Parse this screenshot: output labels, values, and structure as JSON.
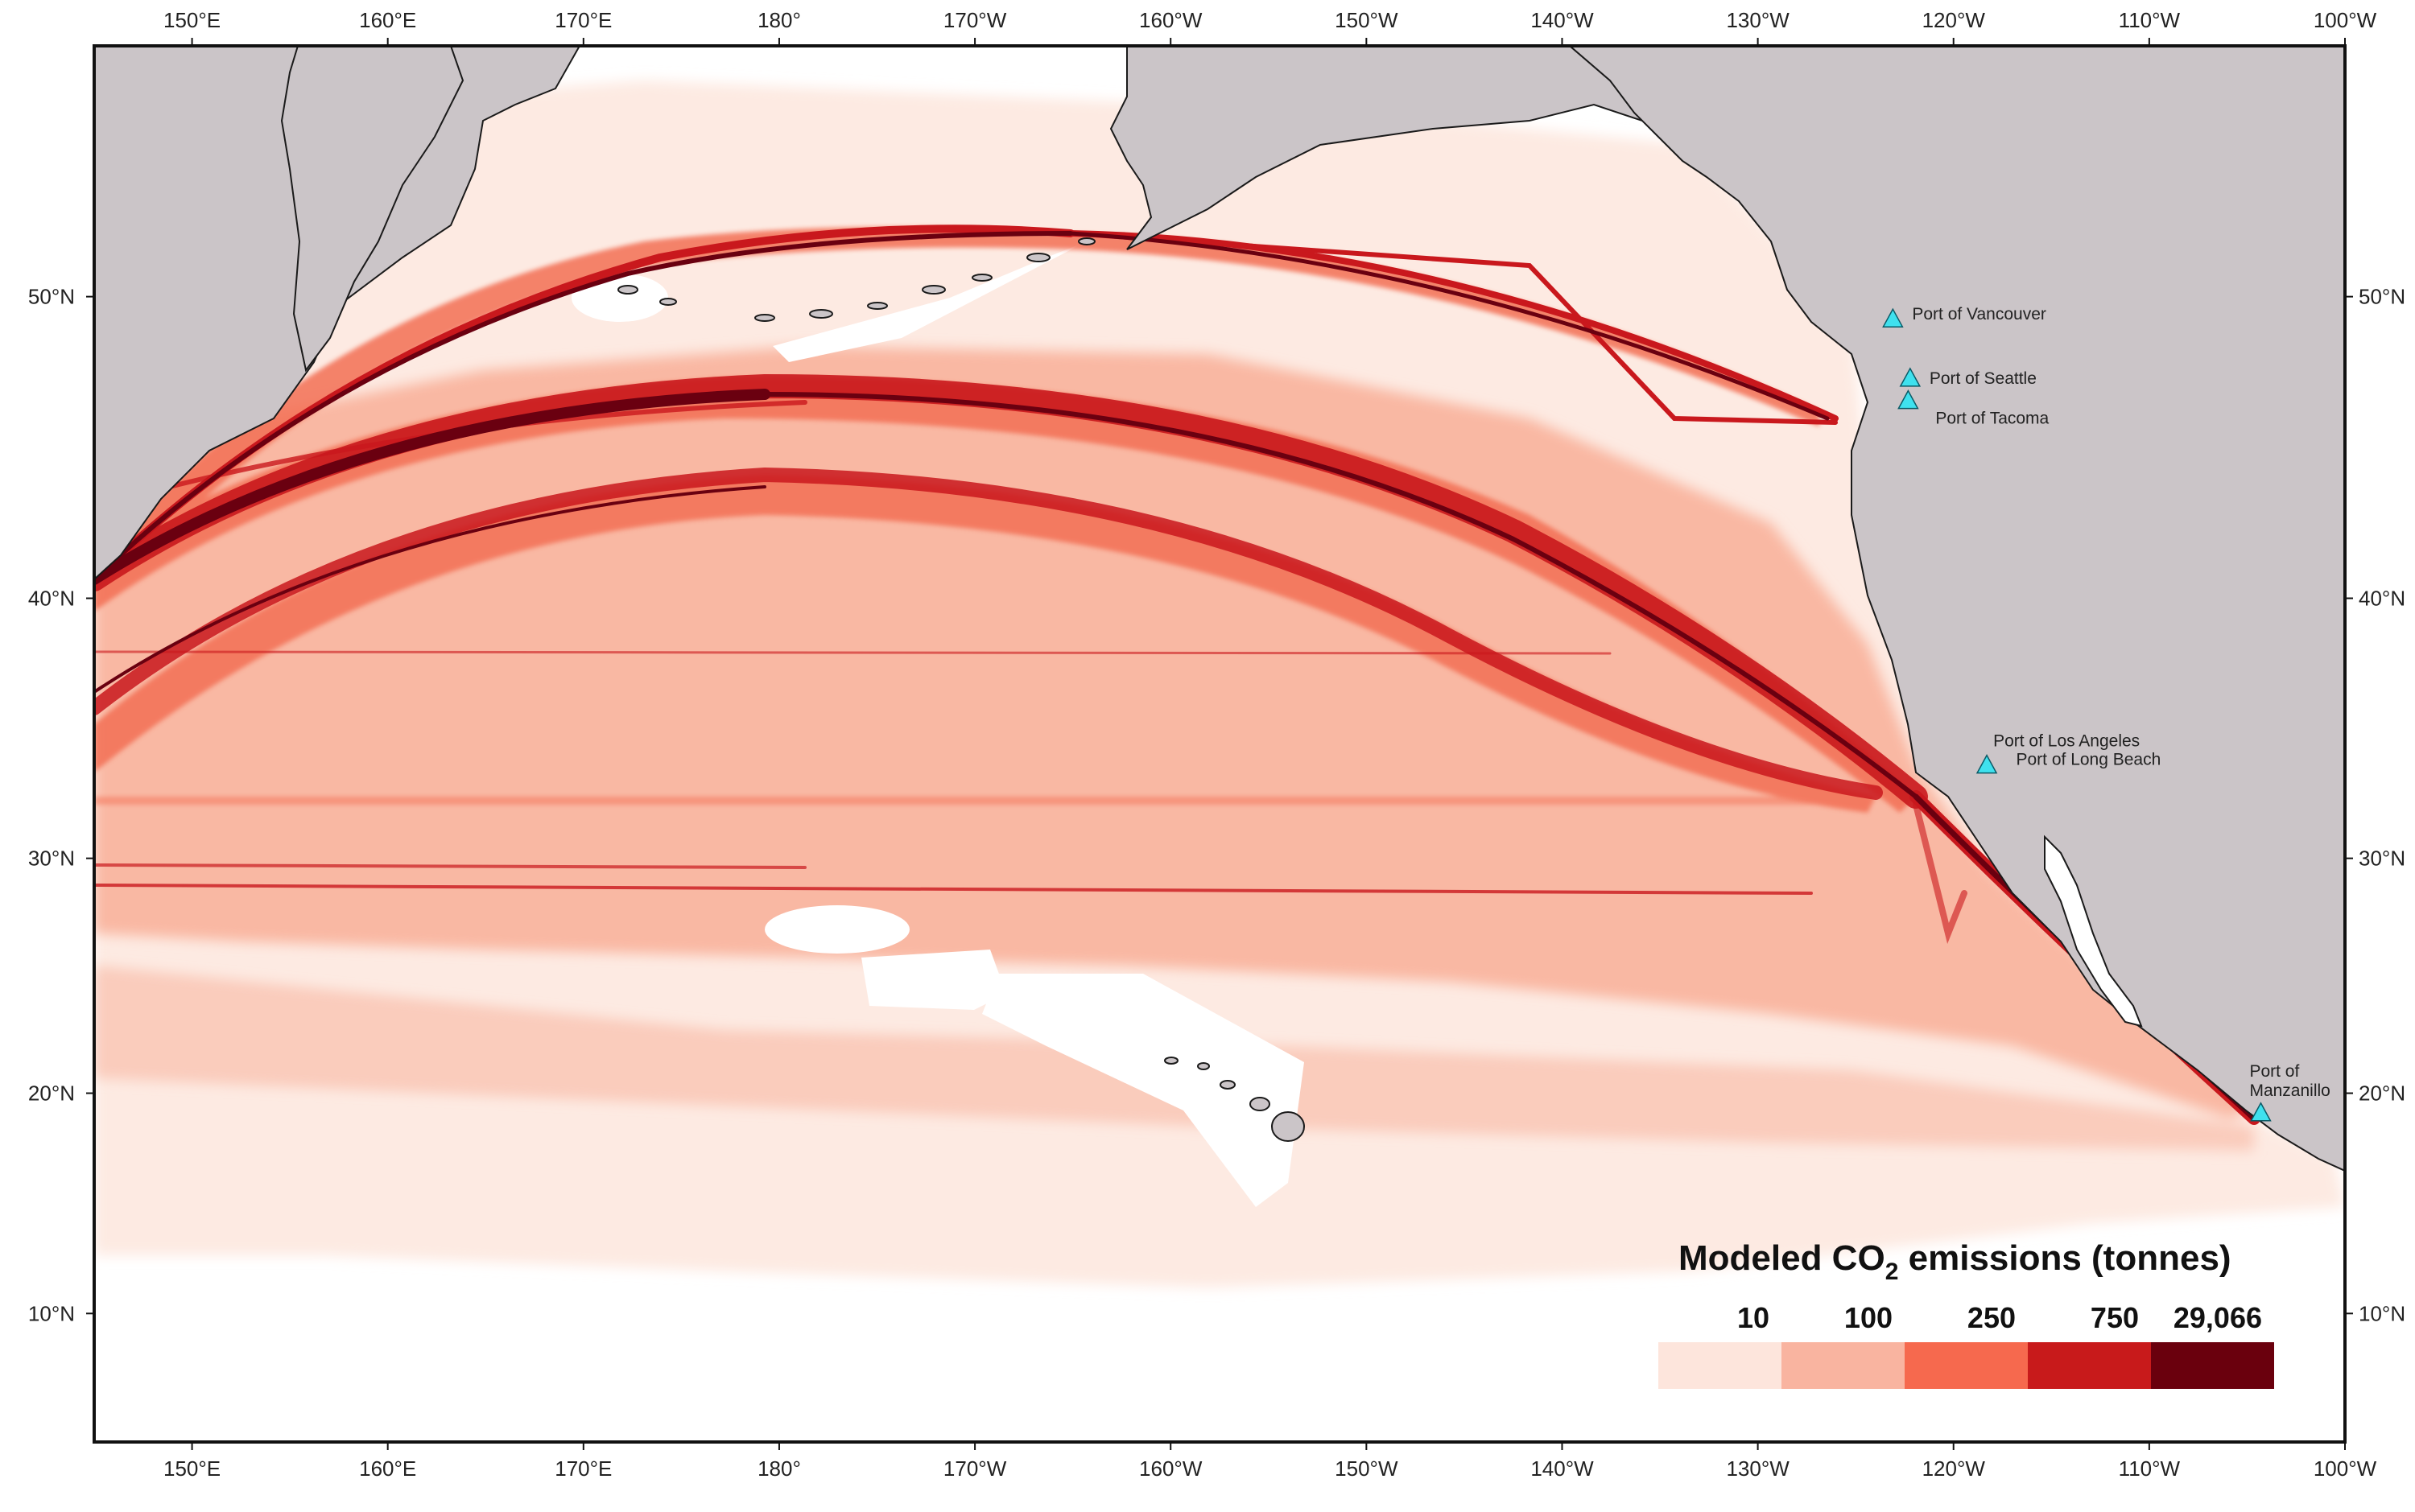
{
  "map": {
    "lon_range": [
      145,
      -100
    ],
    "lat_range": [
      4,
      57
    ]
  },
  "axes": {
    "top_ticks": [
      "150°E",
      "160°E",
      "170°E",
      "180°",
      "170°W",
      "160°W",
      "150°W",
      "140°W",
      "130°W",
      "120°W",
      "110°W",
      "100°W"
    ],
    "bottom_ticks": [
      "150°E",
      "160°E",
      "170°E",
      "180°",
      "170°W",
      "160°W",
      "150°W",
      "140°W",
      "130°W",
      "120°W",
      "110°W",
      "100°W"
    ],
    "left_ticks": [
      "50°N",
      "40°N",
      "30°N",
      "20°N",
      "10°N"
    ],
    "right_ticks": [
      "50°N",
      "40°N",
      "30°N",
      "20°N",
      "10°N"
    ]
  },
  "ports": [
    {
      "name": "Port of Vancouver",
      "lon": -123.1,
      "lat": 49.3
    },
    {
      "name": "Port of Seattle",
      "lon": -122.3,
      "lat": 47.6
    },
    {
      "name": "Port of Tacoma",
      "lon": -122.4,
      "lat": 47.3
    },
    {
      "name": "Port of Los Angeles",
      "lon": -118.3,
      "lat": 33.7
    },
    {
      "name": "Port of Long Beach",
      "lon": -118.2,
      "lat": 33.8
    },
    {
      "name": "Port of",
      "name2": "Manzanillo",
      "lon": -104.3,
      "lat": 19.1
    }
  ],
  "legend": {
    "title_pre": "Modeled CO",
    "title_sub": "2",
    "title_post": " emissions (tonnes)",
    "bins": [
      {
        "label": "10",
        "color": "#fde5dc"
      },
      {
        "label": "100",
        "color": "#f9b4a0"
      },
      {
        "label": "250",
        "color": "#f6694e"
      },
      {
        "label": "750",
        "color": "#c81a1b"
      },
      {
        "label": "29,066",
        "color": "#6a000d"
      }
    ]
  },
  "colors": {
    "land": "#cbc5c8",
    "ocean": "#ffffff",
    "marker": "#3fe1ee",
    "very_light": "#fdeae2",
    "light": "#f9b8a3",
    "medium": "#f37055",
    "high": "#c9181d",
    "very_high": "#6a0010"
  }
}
